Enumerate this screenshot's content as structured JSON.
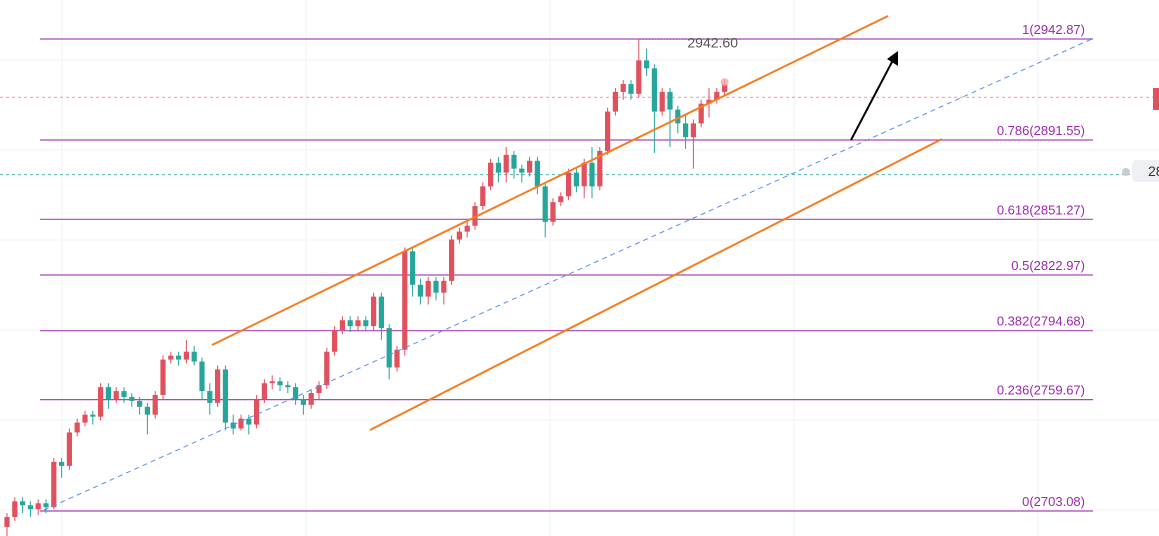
{
  "chart_data": {
    "type": "candlestick",
    "fib_levels": [
      {
        "ratio": "1",
        "price": 2942.87,
        "label": "1(2942.87)"
      },
      {
        "ratio": "0.786",
        "price": 2891.55,
        "label": "0.786(2891.55)"
      },
      {
        "ratio": "0.618",
        "price": 2851.27,
        "label": "0.618(2851.27)"
      },
      {
        "ratio": "0.5",
        "price": 2822.97,
        "label": "0.5(2822.97)"
      },
      {
        "ratio": "0.382",
        "price": 2794.68,
        "label": "0.382(2794.68)"
      },
      {
        "ratio": "0.236",
        "price": 2759.67,
        "label": "0.236(2759.67)"
      },
      {
        "ratio": "0",
        "price": 2703.08,
        "label": "0(2703.08)"
      }
    ],
    "peak_label": "2942.60",
    "price_badge": "28",
    "colors": {
      "up": "#e0505d",
      "down": "#26a69a",
      "fib": "#9c27b0",
      "channel": "#f57c20",
      "midline": "#5b8def",
      "arrow": "#000000"
    },
    "candles": [
      [
        2695,
        2700,
        2690,
        2702
      ],
      [
        2700,
        2708,
        2698,
        2710
      ],
      [
        2708,
        2706,
        2702,
        2710
      ],
      [
        2706,
        2704,
        2700,
        2708
      ],
      [
        2704,
        2707,
        2701,
        2709
      ],
      [
        2707,
        2705,
        2702,
        2709
      ],
      [
        2705,
        2728,
        2704,
        2730
      ],
      [
        2728,
        2726,
        2720,
        2730
      ],
      [
        2726,
        2743,
        2724,
        2745
      ],
      [
        2743,
        2748,
        2741,
        2750
      ],
      [
        2748,
        2752,
        2746,
        2754
      ],
      [
        2752,
        2751,
        2747,
        2754
      ],
      [
        2751,
        2766,
        2749,
        2768
      ],
      [
        2766,
        2760,
        2755,
        2768
      ],
      [
        2760,
        2764,
        2758,
        2766
      ],
      [
        2764,
        2761,
        2758,
        2766
      ],
      [
        2761,
        2759,
        2756,
        2763
      ],
      [
        2759,
        2756,
        2752,
        2761
      ],
      [
        2756,
        2752,
        2742,
        2758
      ],
      [
        2752,
        2762,
        2750,
        2764
      ],
      [
        2762,
        2780,
        2760,
        2782
      ],
      [
        2780,
        2782,
        2778,
        2784
      ],
      [
        2782,
        2780,
        2777,
        2784
      ],
      [
        2780,
        2784,
        2778,
        2790
      ],
      [
        2784,
        2779,
        2777,
        2787
      ],
      [
        2779,
        2764,
        2760,
        2781
      ],
      [
        2764,
        2758,
        2752,
        2768
      ],
      [
        2758,
        2775,
        2756,
        2777
      ],
      [
        2775,
        2748,
        2744,
        2777
      ],
      [
        2748,
        2745,
        2742,
        2752
      ],
      [
        2745,
        2750,
        2744,
        2752
      ],
      [
        2750,
        2747,
        2742,
        2752
      ],
      [
        2747,
        2760,
        2745,
        2762
      ],
      [
        2760,
        2768,
        2758,
        2770
      ],
      [
        2768,
        2769,
        2765,
        2772
      ],
      [
        2769,
        2767,
        2764,
        2771
      ],
      [
        2767,
        2766,
        2763,
        2769
      ],
      [
        2766,
        2760,
        2757,
        2768
      ],
      [
        2760,
        2757,
        2752,
        2762
      ],
      [
        2757,
        2763,
        2755,
        2765
      ],
      [
        2763,
        2767,
        2760,
        2769
      ],
      [
        2767,
        2784,
        2765,
        2786
      ],
      [
        2784,
        2795,
        2782,
        2797
      ],
      [
        2795,
        2800,
        2793,
        2802
      ],
      [
        2800,
        2797,
        2794,
        2802
      ],
      [
        2797,
        2800,
        2795,
        2802
      ],
      [
        2800,
        2797,
        2795,
        2802
      ],
      [
        2797,
        2812,
        2795,
        2814
      ],
      [
        2812,
        2796,
        2790,
        2814
      ],
      [
        2796,
        2776,
        2770,
        2798
      ],
      [
        2776,
        2785,
        2774,
        2787
      ],
      [
        2785,
        2835,
        2782,
        2837
      ],
      [
        2835,
        2818,
        2812,
        2837
      ],
      [
        2818,
        2812,
        2808,
        2821
      ],
      [
        2812,
        2820,
        2808,
        2822
      ],
      [
        2820,
        2814,
        2810,
        2822
      ],
      [
        2814,
        2820,
        2808,
        2822
      ],
      [
        2820,
        2841,
        2818,
        2843
      ],
      [
        2841,
        2845,
        2839,
        2847
      ],
      [
        2845,
        2848,
        2842,
        2850
      ],
      [
        2848,
        2858,
        2846,
        2860
      ],
      [
        2858,
        2868,
        2856,
        2870
      ],
      [
        2868,
        2880,
        2866,
        2882
      ],
      [
        2880,
        2875,
        2870,
        2883
      ],
      [
        2875,
        2884,
        2870,
        2888
      ],
      [
        2884,
        2877,
        2872,
        2886
      ],
      [
        2877,
        2875,
        2870,
        2879
      ],
      [
        2875,
        2881,
        2873,
        2883
      ],
      [
        2881,
        2868,
        2864,
        2883
      ],
      [
        2868,
        2850,
        2842,
        2870
      ],
      [
        2850,
        2860,
        2848,
        2862
      ],
      [
        2860,
        2863,
        2858,
        2865
      ],
      [
        2863,
        2875,
        2861,
        2877
      ],
      [
        2875,
        2868,
        2865,
        2877
      ],
      [
        2868,
        2880,
        2862,
        2882
      ],
      [
        2880,
        2868,
        2862,
        2888
      ],
      [
        2868,
        2886,
        2866,
        2888
      ],
      [
        2886,
        2906,
        2884,
        2908
      ],
      [
        2906,
        2916,
        2904,
        2918
      ],
      [
        2916,
        2920,
        2912,
        2922
      ],
      [
        2920,
        2915,
        2912,
        2922
      ],
      [
        2915,
        2932,
        2913,
        2943
      ],
      [
        2932,
        2928,
        2924,
        2938
      ],
      [
        2928,
        2906,
        2885,
        2930
      ],
      [
        2906,
        2916,
        2904,
        2918
      ],
      [
        2916,
        2907,
        2888,
        2918
      ],
      [
        2907,
        2900,
        2895,
        2909
      ],
      [
        2900,
        2893,
        2887,
        2904
      ],
      [
        2893,
        2900,
        2877,
        2902
      ],
      [
        2900,
        2910,
        2898,
        2912
      ],
      [
        2910,
        2912,
        2903,
        2918
      ],
      [
        2912,
        2916,
        2910,
        2918
      ],
      [
        2916,
        2920,
        2914,
        2922
      ]
    ]
  }
}
